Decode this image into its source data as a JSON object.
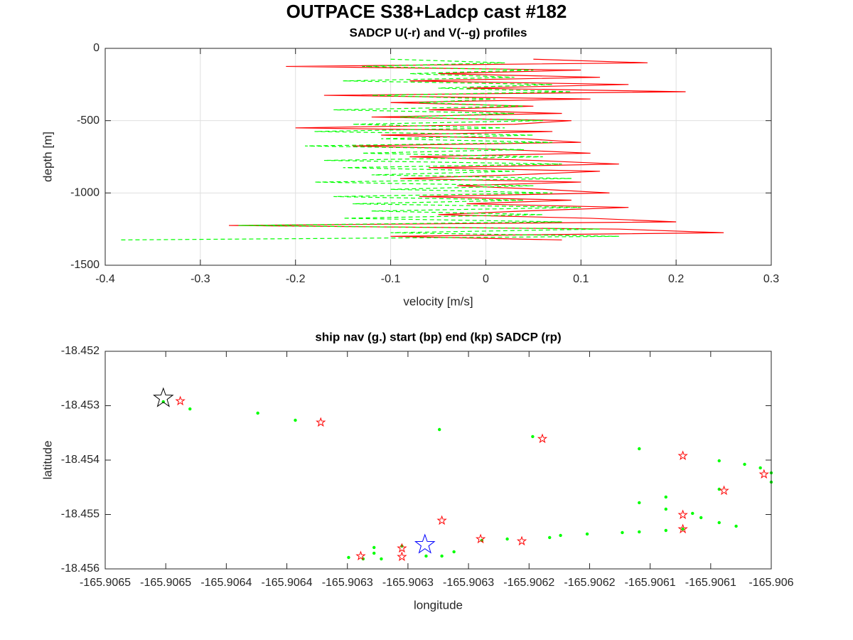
{
  "title": "OUTPACE S38+Ladcp cast #182",
  "chart_data": [
    {
      "type": "line",
      "title": "SADCP U(-r) and V(--g) profiles",
      "x_label": "velocity [m/s]",
      "y_label": "depth [m]",
      "xlim": [
        -0.4,
        0.3
      ],
      "xticks": [
        -0.4,
        -0.3,
        -0.2,
        -0.1,
        0,
        0.1,
        0.2,
        0.3
      ],
      "ylim": [
        -1500,
        0
      ],
      "yticks": [
        -1500,
        -1000,
        -500,
        0
      ],
      "grid": true,
      "series": [
        {
          "color": "#ff0000",
          "dash": false,
          "x": [
            0.05,
            0.17,
            -0.21,
            0.1,
            -0.05,
            0.12,
            -0.08,
            0.15,
            -0.02,
            0.21,
            -0.17,
            0.11,
            -0.1,
            0.05,
            -0.06,
            0.08,
            -0.12,
            0.09,
            0.03,
            -0.2,
            0.07,
            -0.11,
            0.04,
            0.1,
            -0.14,
            0.02,
            0.11,
            -0.08,
            0.05,
            0.14,
            -0.06,
            0.12,
            0.03,
            -0.09,
            0.1,
            -0.03,
            0.06,
            0.13,
            -0.07,
            0.09,
            -0.02,
            0.15,
            0.04,
            -0.05,
            0.11,
            0.2,
            -0.27,
            0.14,
            0.25,
            -0.1,
            0.08
          ],
          "y": [
            -75,
            -100,
            -125,
            -150,
            -175,
            -200,
            -225,
            -250,
            -275,
            -300,
            -325,
            -350,
            -375,
            -400,
            -425,
            -450,
            -475,
            -500,
            -525,
            -550,
            -575,
            -600,
            -625,
            -650,
            -675,
            -700,
            -725,
            -750,
            -775,
            -800,
            -825,
            -850,
            -875,
            -900,
            -925,
            -950,
            -975,
            -1000,
            -1025,
            -1050,
            -1075,
            -1100,
            -1125,
            -1150,
            -1175,
            -1200,
            -1225,
            -1250,
            -1275,
            -1300,
            -1325
          ]
        },
        {
          "color": "#00ff00",
          "dash": true,
          "x": [
            -0.1,
            0.02,
            -0.13,
            0.05,
            -0.08,
            0.03,
            -0.15,
            0.07,
            -0.05,
            0.09,
            -0.12,
            0.01,
            -0.07,
            0.04,
            -0.16,
            0.03,
            -0.09,
            0.06,
            -0.14,
            0.02,
            -0.18,
            0.05,
            -0.11,
            0.07,
            -0.19,
            0.04,
            -0.13,
            0.06,
            -0.17,
            0.08,
            -0.15,
            0.03,
            -0.12,
            0.09,
            -0.18,
            0.05,
            -0.1,
            0.07,
            -0.16,
            0.04,
            -0.14,
            0.1,
            -0.12,
            0.06,
            -0.15,
            0.08,
            -0.26,
            0.12,
            -0.1,
            0.14,
            -0.385
          ],
          "y": [
            -75,
            -100,
            -125,
            -150,
            -175,
            -200,
            -225,
            -250,
            -275,
            -300,
            -325,
            -350,
            -375,
            -400,
            -425,
            -450,
            -475,
            -500,
            -525,
            -550,
            -575,
            -600,
            -625,
            -650,
            -675,
            -700,
            -725,
            -750,
            -775,
            -800,
            -825,
            -850,
            -875,
            -900,
            -925,
            -950,
            -975,
            -1000,
            -1025,
            -1050,
            -1075,
            -1100,
            -1125,
            -1150,
            -1175,
            -1200,
            -1225,
            -1250,
            -1275,
            -1300,
            -1325
          ]
        }
      ]
    },
    {
      "type": "scatter",
      "title": "ship nav (g.) start (bp) end (kp) SADCP (rp)",
      "x_label": "longitude",
      "y_label": "latitude",
      "xlim": [
        -165.90655,
        -165.906
      ],
      "xticks": [
        {
          "value": -165.90655,
          "label": "-165.9065"
        },
        {
          "value": -165.9065,
          "label": "-165.9065"
        },
        {
          "value": -165.90645,
          "label": "-165.9064"
        },
        {
          "value": -165.9064,
          "label": "-165.9064"
        },
        {
          "value": -165.90635,
          "label": "-165.9063"
        },
        {
          "value": -165.9063,
          "label": "-165.9063"
        },
        {
          "value": -165.90625,
          "label": "-165.9063"
        },
        {
          "value": -165.9062,
          "label": "-165.9062"
        },
        {
          "value": -165.90615,
          "label": "-165.9062"
        },
        {
          "value": -165.9061,
          "label": "-165.9061"
        },
        {
          "value": -165.90605,
          "label": "-165.9061"
        },
        -165.906
      ],
      "ylim": [
        -18.456,
        -18.452
      ],
      "yticks": [
        -18.456,
        -18.455,
        -18.454,
        -18.453,
        -18.452
      ],
      "grid": false,
      "series": [
        {
          "color": "#00ff00",
          "marker": "dot",
          "x": [
            -165.906502,
            -165.90648,
            -165.906424,
            -165.906393,
            -165.906274,
            -165.906197,
            -165.906109,
            -165.906043,
            -165.906022,
            -165.906009,
            -165.906,
            -165.906,
            -165.906043,
            -165.906087,
            -165.906109,
            -165.906087,
            -165.906065,
            -165.906058,
            -165.906043,
            -165.906029,
            -165.906073,
            -165.906087,
            -165.906109,
            -165.906123,
            -165.906152,
            -165.906174,
            -165.906183,
            -165.906218,
            -165.906239,
            -165.906262,
            -165.906285,
            -165.906305,
            -165.906322,
            -165.906328,
            -165.906349,
            -165.906337,
            -165.906328,
            -165.906272
          ],
          "y": [
            -18.452928,
            -18.453059,
            -18.453137,
            -18.453268,
            -18.453438,
            -18.453568,
            -18.453791,
            -18.454013,
            -18.454078,
            -18.454143,
            -18.454235,
            -18.454405,
            -18.454536,
            -18.454679,
            -18.454784,
            -18.454902,
            -18.45498,
            -18.455058,
            -18.45515,
            -18.455215,
            -18.455268,
            -18.455294,
            -18.45532,
            -18.455333,
            -18.455359,
            -18.455385,
            -18.455424,
            -18.455451,
            -18.455477,
            -18.455686,
            -18.455764,
            -18.455581,
            -18.455816,
            -18.455712,
            -18.45579,
            -18.455816,
            -18.455607,
            -18.455764
          ]
        },
        {
          "color": "#ff0000",
          "marker": "star",
          "x": [
            -165.906488,
            -165.906372,
            -165.906189,
            -165.906073,
            -165.906006,
            -165.906039,
            -165.906073,
            -165.906272,
            -165.906073,
            -165.90624,
            -165.906206,
            -165.906305,
            -165.906339,
            -165.906305
          ],
          "y": [
            -18.452915,
            -18.453307,
            -18.453608,
            -18.453921,
            -18.454261,
            -18.454562,
            -18.455006,
            -18.455111,
            -18.455268,
            -18.455451,
            -18.45549,
            -18.455621,
            -18.455764,
            -18.455777
          ]
        },
        {
          "color": "#000000",
          "marker": "big-star",
          "x": [
            -165.906502
          ],
          "y": [
            -18.452863
          ]
        },
        {
          "color": "#0000ff",
          "marker": "big-star",
          "x": [
            -165.906286
          ],
          "y": [
            -18.455555
          ]
        }
      ]
    }
  ]
}
